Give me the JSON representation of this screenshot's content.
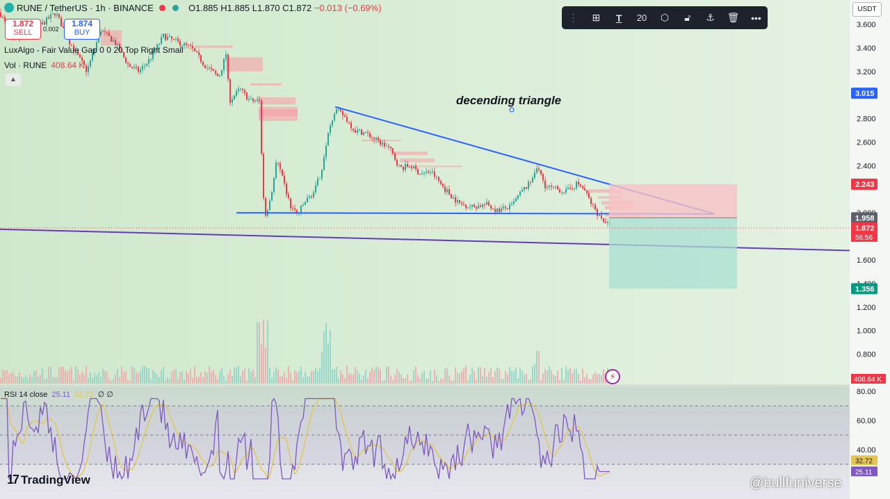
{
  "header": {
    "symbol": "RUNE / TetherUS · 1h · BINANCE",
    "ohlc": "O1.885 H1.885 L1.870 C1.872",
    "change": "−0.013 (−0.69%)",
    "sell_price": "1.872",
    "sell_label": "SELL",
    "spread": "0.002",
    "buy_price": "1.874",
    "buy_label": "BUY",
    "indicator1": "LuxAlgo - Fair Value Gap 0 0 20 Top Right Small",
    "volume_label": "Vol · RUNE",
    "volume_value": "408.64 K",
    "collapse_icon": "chevron-up-icon"
  },
  "toolbar": {
    "line_width": "20",
    "icons": [
      "drag-handle-icon",
      "object-tree-icon",
      "text-icon",
      "settings-icon",
      "lock-icon",
      "anchor-icon",
      "trash-icon",
      "more-icon"
    ]
  },
  "currency_button": "USDT",
  "annotation": "decending triangle",
  "rsi_header": {
    "label": "RSI 14 close",
    "rsi_value": "25.11",
    "ma_value": "32.72",
    "extra": "∅ ∅"
  },
  "brand": "TradingView",
  "watermark": "@bullfuniverse",
  "colors": {
    "up": "#26a69a",
    "down": "#f23645",
    "trendline": "#2962ff",
    "support": "#673ab7",
    "rsi_line": "#7e57c2",
    "rsi_ma": "#e5c552",
    "bg_green": "#d7ecd4"
  },
  "chart_data": [
    {
      "type": "candlestick",
      "symbol": "RUNE/USDT",
      "timeframe": "1h",
      "y_axis_ticks": [
        "3.600",
        "3.400",
        "3.200",
        "2.800",
        "2.600",
        "2.400",
        "2.000",
        "1.600",
        "1.400",
        "1.200",
        "1.000",
        "0.800"
      ],
      "ylim": [
        0.65,
        3.72
      ],
      "price_path": [
        [
          0,
          3.7
        ],
        [
          20,
          3.45
        ],
        [
          40,
          3.55
        ],
        [
          60,
          3.6
        ],
        [
          80,
          3.7
        ],
        [
          100,
          3.45
        ],
        [
          125,
          3.2
        ],
        [
          145,
          3.55
        ],
        [
          165,
          3.45
        ],
        [
          185,
          3.25
        ],
        [
          200,
          3.2
        ],
        [
          215,
          3.3
        ],
        [
          235,
          3.5
        ],
        [
          255,
          3.45
        ],
        [
          275,
          3.4
        ],
        [
          295,
          3.25
        ],
        [
          315,
          3.15
        ],
        [
          325,
          3.35
        ],
        [
          330,
          2.95
        ],
        [
          345,
          3.05
        ],
        [
          360,
          2.95
        ],
        [
          373,
          2.95
        ],
        [
          378,
          2.2
        ],
        [
          382,
          1.98
        ],
        [
          390,
          2.15
        ],
        [
          398,
          2.45
        ],
        [
          408,
          2.25
        ],
        [
          418,
          2.05
        ],
        [
          428,
          1.99
        ],
        [
          440,
          2.1
        ],
        [
          452,
          2.18
        ],
        [
          462,
          2.35
        ],
        [
          472,
          2.7
        ],
        [
          482,
          2.88
        ],
        [
          495,
          2.82
        ],
        [
          510,
          2.7
        ],
        [
          525,
          2.68
        ],
        [
          545,
          2.6
        ],
        [
          560,
          2.55
        ],
        [
          575,
          2.38
        ],
        [
          590,
          2.4
        ],
        [
          605,
          2.33
        ],
        [
          620,
          2.35
        ],
        [
          640,
          2.2
        ],
        [
          660,
          2.08
        ],
        [
          680,
          2.05
        ],
        [
          700,
          2.07
        ],
        [
          715,
          2.02
        ],
        [
          735,
          2.05
        ],
        [
          750,
          2.18
        ],
        [
          762,
          2.25
        ],
        [
          772,
          2.4
        ],
        [
          785,
          2.22
        ],
        [
          800,
          2.2
        ],
        [
          815,
          2.18
        ],
        [
          830,
          2.25
        ],
        [
          840,
          2.2
        ],
        [
          850,
          2.08
        ],
        [
          862,
          1.97
        ],
        [
          872,
          1.92
        ],
        [
          878,
          1.872
        ]
      ],
      "last_price": "1.872",
      "countdown": "56:56",
      "price_labels": [
        {
          "value": "3.015",
          "color": "#2962ff"
        },
        {
          "value": "2.243",
          "color": "#f23645"
        },
        {
          "value": "1.958",
          "color": "#5d606b"
        },
        {
          "value": "1.872",
          "color": "#f23645"
        },
        {
          "value": "1.356",
          "color": "#089981"
        }
      ],
      "volume_label": "408.64 K",
      "pattern": "descending triangle",
      "trendlines": [
        {
          "name": "descending resistance",
          "from": [
            482,
            2.9
          ],
          "to": [
            1028,
            1.99
          ]
        },
        {
          "name": "horizontal support",
          "from": [
            340,
            2.0
          ],
          "to": [
            1028,
            1.99
          ]
        },
        {
          "name": "long-term support",
          "from": [
            0,
            1.86
          ],
          "to": [
            1222,
            1.68
          ]
        }
      ],
      "short_position": {
        "entry": 1.958,
        "stop": 2.243,
        "target": 1.356
      }
    },
    {
      "type": "line",
      "title": "RSI 14 close",
      "series": [
        {
          "name": "RSI",
          "current": 25.11
        },
        {
          "name": "RSI-based MA",
          "current": 32.72
        }
      ],
      "levels": [
        70,
        50,
        30
      ],
      "y_axis_ticks": [
        "80.00",
        "60.00",
        "40.00"
      ],
      "ylim": [
        20,
        80
      ]
    }
  ]
}
